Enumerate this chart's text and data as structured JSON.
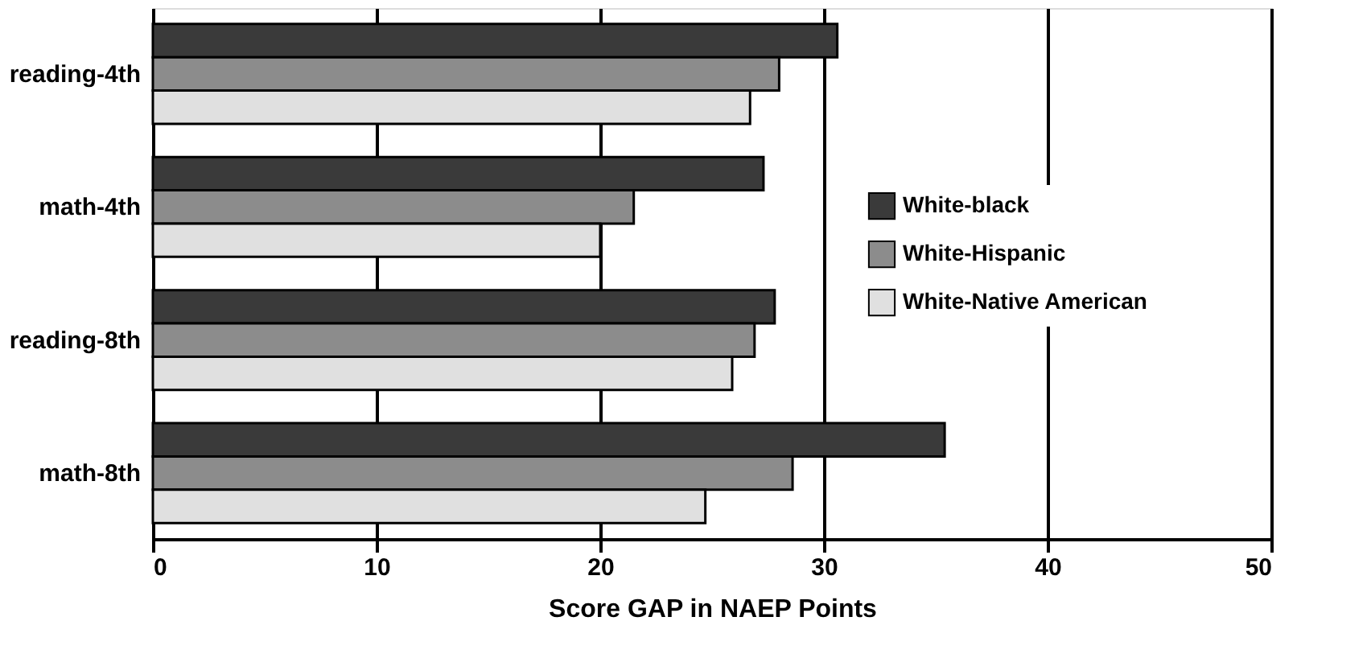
{
  "chart_data": {
    "type": "bar",
    "orientation": "horizontal",
    "xlabel": "Score GAP in NAEP Points",
    "categories": [
      "reading-4th",
      "math-4th",
      "reading-8th",
      "math-8th"
    ],
    "series": [
      {
        "name": "White-black",
        "color": "#3a3a3a",
        "values": [
          30.6,
          27.3,
          27.8,
          35.4
        ]
      },
      {
        "name": "White-Hispanic",
        "color": "#8c8c8c",
        "values": [
          28.0,
          21.5,
          26.9,
          28.6
        ]
      },
      {
        "name": "White-Native American",
        "color": "#e0e0e0",
        "values": [
          26.7,
          20.0,
          25.9,
          24.7
        ]
      }
    ],
    "xlim": [
      0,
      50
    ],
    "xticks": [
      0,
      10,
      20,
      30,
      40,
      50
    ],
    "grid": "x",
    "legend": "right"
  }
}
